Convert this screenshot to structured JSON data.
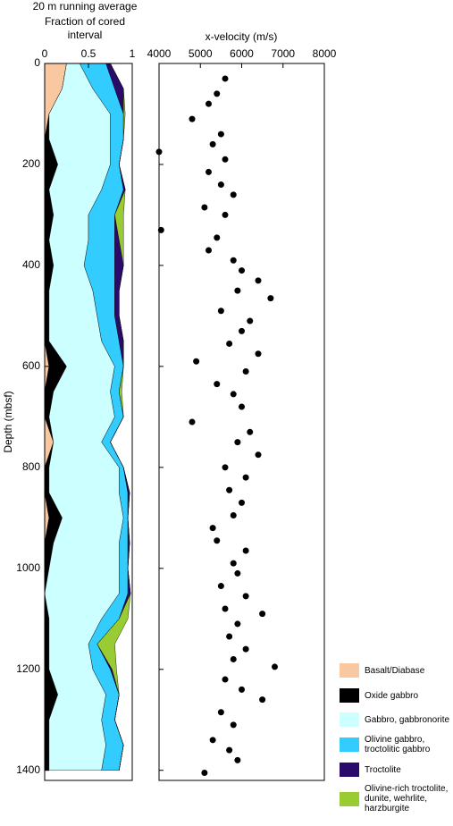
{
  "chart_data": [
    {
      "type": "stacked-area",
      "title": "20 m running average",
      "xlabel": "Fraction of cored interval",
      "ylabel": "Depth (mbsf)",
      "y": [
        0,
        50,
        100,
        150,
        200,
        250,
        300,
        350,
        400,
        450,
        500,
        550,
        600,
        650,
        700,
        750,
        800,
        850,
        900,
        950,
        1000,
        1050,
        1100,
        1150,
        1200,
        1250,
        1300,
        1350,
        1400
      ],
      "xlim": [
        0,
        1
      ],
      "xticks": [
        0,
        0.5,
        1
      ],
      "ylim": [
        0,
        1420
      ],
      "yticks": [
        0,
        200,
        400,
        600,
        800,
        1000,
        1200,
        1400
      ],
      "series": [
        {
          "name": "Basalt/Diabase",
          "color": "#f9c8a0",
          "values": [
            0.25,
            0.2,
            0.05,
            0,
            0,
            0,
            0,
            0,
            0,
            0,
            0,
            0,
            0.05,
            0,
            0,
            0.1,
            0,
            0,
            0.05,
            0,
            0,
            0,
            0,
            0,
            0,
            0,
            0,
            0,
            0
          ]
        },
        {
          "name": "Oxide gabbro",
          "color": "#000000",
          "values": [
            0,
            0,
            0,
            0.05,
            0.15,
            0.05,
            0.1,
            0.05,
            0.1,
            0.05,
            0.05,
            0.05,
            0.2,
            0.1,
            0.05,
            0,
            0.05,
            0.05,
            0.15,
            0.1,
            0.05,
            0,
            0.05,
            0.05,
            0.05,
            0.15,
            0.05,
            0.05,
            0.05
          ]
        },
        {
          "name": "Gabbro, gabbronorite",
          "color": "#ccffff",
          "values": [
            0.15,
            0.35,
            0.7,
            0.7,
            0.6,
            0.6,
            0.4,
            0.45,
            0.35,
            0.5,
            0.55,
            0.6,
            0.55,
            0.65,
            0.75,
            0.55,
            0.8,
            0.8,
            0.7,
            0.75,
            0.8,
            0.85,
            0.6,
            0.45,
            0.5,
            0.55,
            0.6,
            0.65,
            0.6
          ]
        },
        {
          "name": "Olivine gabbro, troctolitic gabbro",
          "color": "#33ccff",
          "values": [
            0.3,
            0.25,
            0.15,
            0.15,
            0.1,
            0.25,
            0.3,
            0.3,
            0.35,
            0.25,
            0.2,
            0.2,
            0.1,
            0.1,
            0.1,
            0.1,
            0.05,
            0.1,
            0.05,
            0.1,
            0.1,
            0.1,
            0.2,
            0.1,
            0.2,
            0.15,
            0.15,
            0.2,
            0.2
          ]
        },
        {
          "name": "Troctolite",
          "color": "#2a0a6b",
          "values": [
            0.05,
            0.1,
            0,
            0,
            0,
            0.02,
            0,
            0.05,
            0.1,
            0.05,
            0.05,
            0.05,
            0,
            0,
            0,
            0,
            0,
            0.02,
            0,
            0.02,
            0,
            0.03,
            0,
            0,
            0.02,
            0,
            0,
            0,
            0
          ]
        },
        {
          "name": "Olivine-rich troctolite, dunite, wehrlite, harzburgite",
          "color": "#99cc33",
          "values": [
            0,
            0,
            0.02,
            0,
            0,
            0,
            0.1,
            0.05,
            0,
            0,
            0,
            0,
            0,
            0.03,
            0,
            0,
            0,
            0,
            0,
            0,
            0,
            0,
            0.1,
            0.2,
            0.05,
            0,
            0,
            0,
            0
          ]
        }
      ]
    },
    {
      "type": "scatter",
      "xlabel": "x-velocity (m/s)",
      "xlim": [
        4000,
        8000
      ],
      "xticks": [
        4000,
        5000,
        6000,
        7000,
        8000
      ],
      "ylim": [
        0,
        1420
      ],
      "yticks": [
        0,
        200,
        400,
        600,
        800,
        1000,
        1200,
        1400
      ],
      "color": "#000000",
      "x": [
        5600,
        5400,
        5200,
        4800,
        5500,
        5300,
        4000,
        5600,
        5200,
        5500,
        5800,
        5100,
        5600,
        4050,
        5400,
        5200,
        5800,
        6000,
        6400,
        5900,
        6700,
        5500,
        6200,
        6000,
        5700,
        6400,
        4900,
        6100,
        5400,
        5800,
        6000,
        4800,
        6200,
        5900,
        6400,
        5600,
        6100,
        5700,
        6000,
        5800,
        5300,
        5400,
        6100,
        5800,
        5900,
        5500,
        6100,
        5600,
        6500,
        5900,
        5700,
        6100,
        5800,
        6800,
        5600,
        6000,
        6500,
        5500,
        5800,
        5300,
        5700,
        5900,
        5100
      ],
      "y": [
        30,
        60,
        80,
        110,
        140,
        160,
        175,
        190,
        215,
        240,
        260,
        285,
        300,
        330,
        345,
        370,
        390,
        410,
        430,
        450,
        465,
        490,
        510,
        530,
        555,
        575,
        590,
        610,
        635,
        655,
        680,
        710,
        730,
        750,
        775,
        800,
        820,
        845,
        870,
        895,
        920,
        945,
        965,
        990,
        1010,
        1035,
        1055,
        1080,
        1090,
        1110,
        1135,
        1160,
        1180,
        1195,
        1220,
        1240,
        1260,
        1285,
        1310,
        1340,
        1360,
        1380,
        1405
      ]
    }
  ]
}
